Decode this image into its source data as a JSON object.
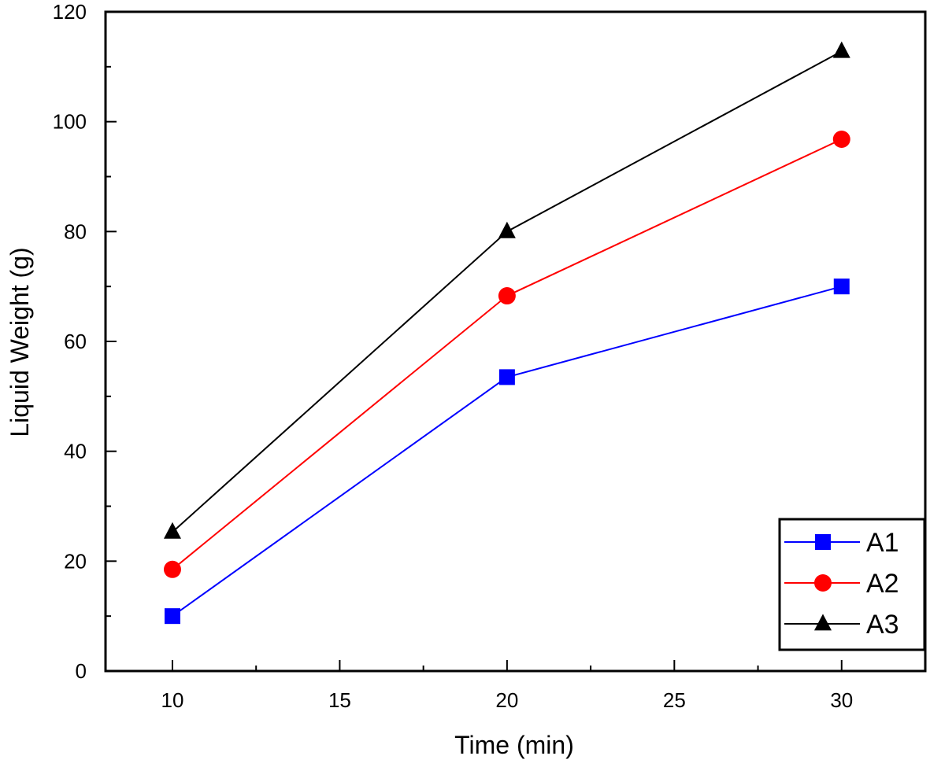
{
  "chart_data": {
    "type": "line",
    "title": "",
    "xlabel": "Time (min)",
    "ylabel": "Liquid Weight (g)",
    "xlim": [
      8,
      32.5
    ],
    "ylim": [
      0,
      120
    ],
    "x_ticks": [
      10,
      15,
      20,
      25,
      30
    ],
    "x_tick_labels": [
      "10",
      "15",
      "20",
      "25",
      "30"
    ],
    "x_minor_ticks": [
      12.5,
      17.5,
      22.5,
      27.5
    ],
    "y_ticks": [
      0,
      20,
      40,
      60,
      80,
      100,
      120
    ],
    "y_tick_labels": [
      "0",
      "20",
      "40",
      "60",
      "80",
      "100",
      "120"
    ],
    "y_minor_ticks": [
      10,
      30,
      50,
      70,
      90,
      110
    ],
    "grid": false,
    "legend_position": "bottom-right",
    "x": [
      10,
      20,
      30
    ],
    "series": [
      {
        "name": "A1",
        "values": [
          10.0,
          53.5,
          70.0
        ],
        "color": "#0000ff",
        "marker": "square"
      },
      {
        "name": "A2",
        "values": [
          18.5,
          68.3,
          96.8
        ],
        "color": "#ff0000",
        "marker": "circle"
      },
      {
        "name": "A3",
        "values": [
          25.3,
          80.0,
          112.8
        ],
        "color": "#000000",
        "marker": "triangle"
      }
    ]
  }
}
